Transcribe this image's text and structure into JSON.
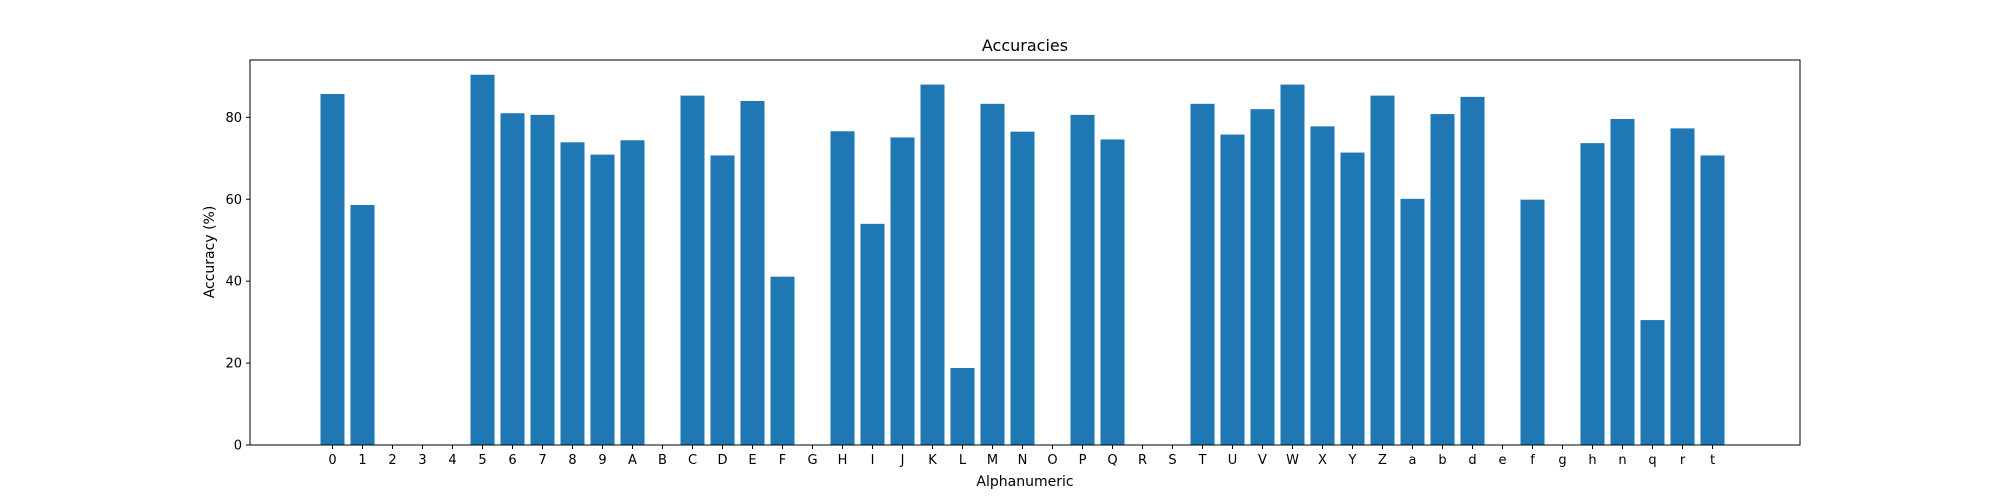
{
  "chart_data": {
    "type": "bar",
    "title": "Accuracies",
    "xlabel": "Alphanumeric",
    "ylabel": "Accuracy (%)",
    "ylim": [
      0,
      94
    ],
    "yticks": [
      0,
      20,
      40,
      60,
      80
    ],
    "grid": false,
    "bar_color": "#1f77b4",
    "categories": [
      "0",
      "1",
      "2",
      "3",
      "4",
      "5",
      "6",
      "7",
      "8",
      "9",
      "A",
      "B",
      "C",
      "D",
      "E",
      "F",
      "G",
      "H",
      "I",
      "J",
      "K",
      "L",
      "M",
      "N",
      "O",
      "P",
      "Q",
      "R",
      "S",
      "T",
      "U",
      "V",
      "W",
      "X",
      "Y",
      "Z",
      "a",
      "b",
      "d",
      "e",
      "f",
      "g",
      "h",
      "n",
      "q",
      "r",
      "t"
    ],
    "values": [
      85.7,
      58.6,
      0,
      0,
      0,
      90.4,
      81.0,
      80.6,
      73.9,
      70.9,
      74.4,
      0,
      85.3,
      70.7,
      84.0,
      41.1,
      0,
      76.6,
      54.0,
      75.1,
      88.0,
      18.8,
      83.3,
      76.5,
      0,
      80.6,
      74.6,
      0,
      0,
      83.3,
      75.8,
      82.0,
      88.0,
      77.8,
      71.4,
      85.3,
      60.1,
      80.8,
      85.0,
      0,
      59.9,
      0,
      73.7,
      79.6,
      30.5,
      77.3,
      70.7
    ]
  }
}
